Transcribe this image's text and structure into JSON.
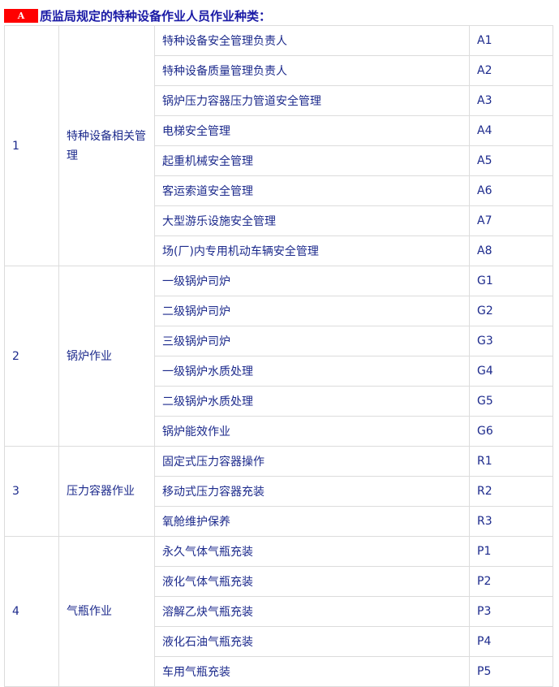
{
  "title": {
    "badge": "A",
    "text": "质监局规定的特种设备作业人员作业种类："
  },
  "groups": [
    {
      "no": "1",
      "name": "特种设备相关管理",
      "items": [
        {
          "name": "特种设备安全管理负责人",
          "code": "A1"
        },
        {
          "name": "特种设备质量管理负责人",
          "code": "A2"
        },
        {
          "name": "锅炉压力容器压力管道安全管理",
          "code": "A3"
        },
        {
          "name": "电梯安全管理",
          "code": "A4"
        },
        {
          "name": "起重机械安全管理",
          "code": "A5"
        },
        {
          "name": "客运索道安全管理",
          "code": "A6"
        },
        {
          "name": "大型游乐设施安全管理",
          "code": "A7"
        },
        {
          "name": "场(厂)内专用机动车辆安全管理",
          "code": "A8"
        }
      ]
    },
    {
      "no": "2",
      "name": "锅炉作业",
      "items": [
        {
          "name": "一级锅炉司炉",
          "code": "G1"
        },
        {
          "name": "二级锅炉司炉",
          "code": "G2"
        },
        {
          "name": "三级锅炉司炉",
          "code": "G3"
        },
        {
          "name": "一级锅炉水质处理",
          "code": "G4"
        },
        {
          "name": "二级锅炉水质处理",
          "code": "G5"
        },
        {
          "name": "锅炉能效作业",
          "code": "G6"
        }
      ]
    },
    {
      "no": "3",
      "name": "压力容器作业",
      "items": [
        {
          "name": "固定式压力容器操作",
          "code": "R1"
        },
        {
          "name": "移动式压力容器充装",
          "code": "R2"
        },
        {
          "name": "氧舱维护保养",
          "code": "R3"
        }
      ]
    },
    {
      "no": "4",
      "name": "气瓶作业",
      "items": [
        {
          "name": "永久气体气瓶充装",
          "code": "P1"
        },
        {
          "name": "液化气体气瓶充装",
          "code": "P2"
        },
        {
          "name": "溶解乙炔气瓶充装",
          "code": "P3"
        },
        {
          "name": "液化石油气瓶充装",
          "code": "P4"
        },
        {
          "name": "车用气瓶充装",
          "code": "P5"
        }
      ]
    }
  ]
}
